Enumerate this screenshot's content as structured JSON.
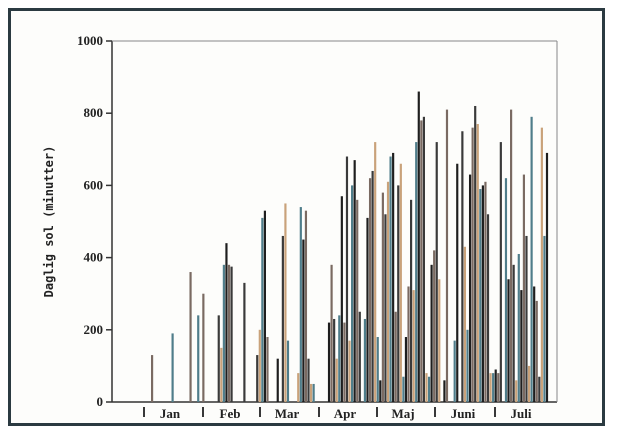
{
  "chart_data": {
    "type": "bar",
    "title": "",
    "xlabel": "",
    "ylabel": "Daglig sol (minutter)",
    "ylim": [
      0,
      1000
    ],
    "y_ticks": [
      0,
      200,
      400,
      600,
      800,
      1000
    ],
    "x_ticks": [
      "Jan",
      "Feb",
      "Mar",
      "Apr",
      "Maj",
      "Juni",
      "Juli"
    ],
    "grid": false,
    "series": [
      {
        "values": [
          0,
          0,
          0,
          0,
          0,
          0,
          0,
          0,
          0,
          130,
          0,
          0,
          0,
          0,
          0,
          0,
          0,
          190,
          0,
          0,
          0,
          0,
          0,
          0,
          360,
          0,
          0,
          240,
          0,
          300,
          0,
          0,
          0,
          0,
          0,
          240,
          150,
          380,
          440,
          380,
          375,
          0,
          0,
          0,
          0,
          330,
          0,
          0,
          0,
          0,
          130,
          200,
          510,
          530,
          180,
          0,
          0,
          0,
          120,
          0,
          460,
          550,
          170,
          0,
          0,
          0,
          80,
          540,
          450,
          530,
          120,
          50,
          50,
          0,
          0,
          0,
          0,
          0,
          220,
          380,
          230,
          120,
          240,
          570,
          220,
          680,
          170,
          600,
          670,
          560,
          250,
          0,
          230,
          510,
          620,
          640,
          720,
          180,
          60,
          580,
          520,
          610,
          680,
          690,
          250,
          600,
          660,
          70,
          180,
          320,
          560,
          310,
          720,
          860,
          780,
          790,
          80,
          70,
          380,
          420,
          720,
          340,
          0,
          60,
          810,
          0,
          0,
          170,
          660,
          0,
          750,
          430,
          200,
          630,
          760,
          820,
          770,
          590,
          600,
          610,
          520,
          80,
          80,
          90,
          80,
          720,
          0,
          620,
          340,
          810,
          380,
          60,
          410,
          310,
          630,
          460,
          100,
          790,
          320,
          280,
          70,
          760,
          460,
          690
        ],
        "colors": [
          "#3a3a3a",
          "#c9a27a",
          "#4f7d8a",
          "#1e1e1e",
          "#7a6a62"
        ]
      }
    ]
  }
}
